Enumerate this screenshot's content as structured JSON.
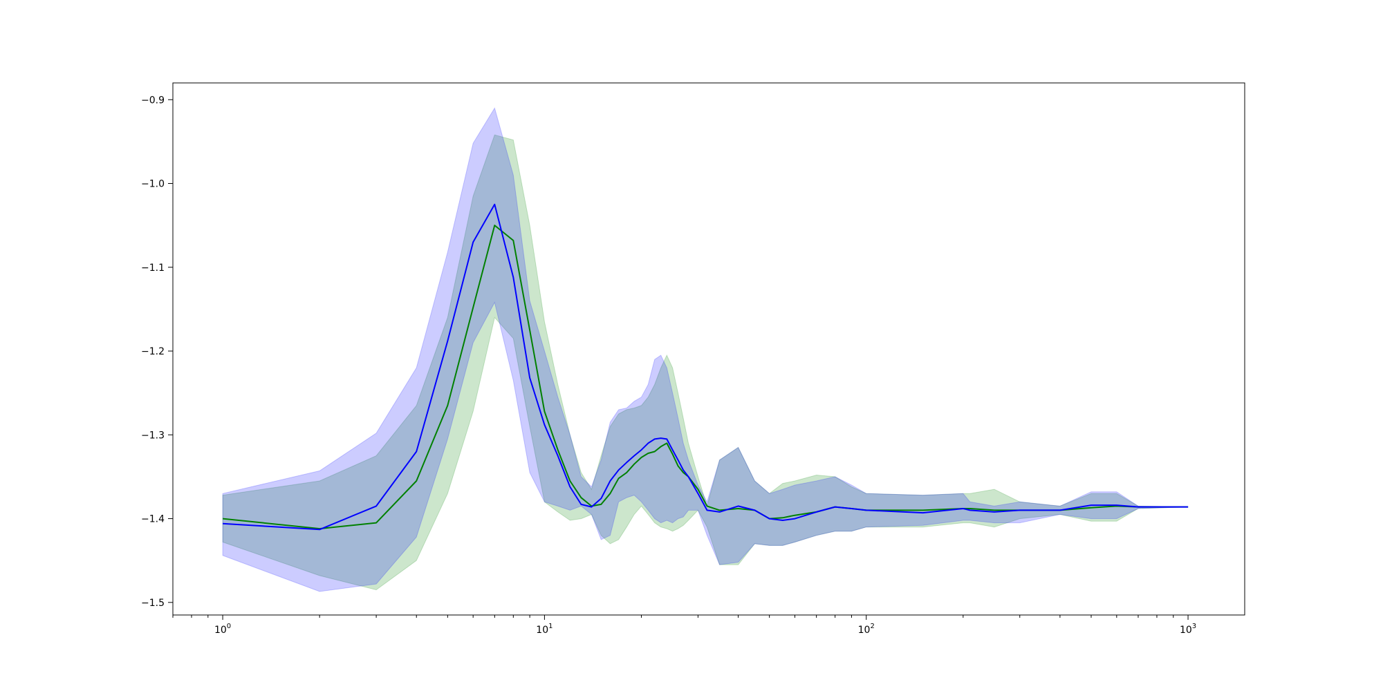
{
  "chart_data": {
    "type": "line",
    "x_scale": "log",
    "xlim": [
      0.7,
      1500
    ],
    "ylim": [
      -1.515,
      -0.88
    ],
    "grid": false,
    "legend": "none",
    "x_ticks": [
      {
        "value": 1,
        "base": "10",
        "exp": "0"
      },
      {
        "value": 10,
        "base": "10",
        "exp": "1"
      },
      {
        "value": 100,
        "base": "10",
        "exp": "2"
      },
      {
        "value": 1000,
        "base": "10",
        "exp": "3"
      }
    ],
    "y_ticks": [
      {
        "value": -0.9,
        "label": "−0.9"
      },
      {
        "value": -1.0,
        "label": "−1.0"
      },
      {
        "value": -1.1,
        "label": "−1.1"
      },
      {
        "value": -1.2,
        "label": "−1.2"
      },
      {
        "value": -1.3,
        "label": "−1.3"
      },
      {
        "value": -1.4,
        "label": "−1.4"
      },
      {
        "value": -1.5,
        "label": "−1.5"
      }
    ],
    "series": [
      {
        "color": "#008000",
        "band_color": "#008000",
        "band_opacity": 0.2,
        "x": [
          1,
          2,
          3,
          4,
          5,
          6,
          7,
          8,
          9,
          10,
          11,
          12,
          13,
          14,
          15,
          16,
          17,
          18,
          19,
          20,
          21,
          22,
          23,
          24,
          25,
          26,
          27,
          28,
          30,
          32,
          35,
          40,
          45,
          50,
          55,
          60,
          70,
          80,
          90,
          100,
          150,
          200,
          210,
          250,
          300,
          400,
          500,
          600,
          700,
          1000
        ],
        "mean": [
          -1.4,
          -1.412,
          -1.405,
          -1.355,
          -1.265,
          -1.148,
          -1.05,
          -1.068,
          -1.175,
          -1.272,
          -1.318,
          -1.355,
          -1.375,
          -1.385,
          -1.383,
          -1.37,
          -1.352,
          -1.345,
          -1.335,
          -1.327,
          -1.322,
          -1.32,
          -1.314,
          -1.31,
          -1.323,
          -1.337,
          -1.345,
          -1.35,
          -1.365,
          -1.385,
          -1.39,
          -1.388,
          -1.39,
          -1.4,
          -1.399,
          -1.396,
          -1.392,
          -1.386,
          -1.388,
          -1.39,
          -1.39,
          -1.388,
          -1.388,
          -1.39,
          -1.39,
          -1.39,
          -1.387,
          -1.385,
          -1.386,
          -1.386
        ],
        "upper": [
          -1.372,
          -1.355,
          -1.325,
          -1.265,
          -1.16,
          -1.015,
          -0.942,
          -0.948,
          -1.05,
          -1.165,
          -1.24,
          -1.3,
          -1.345,
          -1.365,
          -1.325,
          -1.29,
          -1.275,
          -1.27,
          -1.268,
          -1.265,
          -1.255,
          -1.24,
          -1.22,
          -1.205,
          -1.22,
          -1.25,
          -1.28,
          -1.31,
          -1.35,
          -1.385,
          -1.33,
          -1.315,
          -1.355,
          -1.37,
          -1.358,
          -1.355,
          -1.348,
          -1.35,
          -1.362,
          -1.37,
          -1.372,
          -1.37,
          -1.37,
          -1.365,
          -1.38,
          -1.385,
          -1.37,
          -1.37,
          -1.385,
          -1.386
        ],
        "lower": [
          -1.428,
          -1.468,
          -1.485,
          -1.45,
          -1.37,
          -1.272,
          -1.16,
          -1.185,
          -1.29,
          -1.38,
          -1.392,
          -1.402,
          -1.4,
          -1.395,
          -1.42,
          -1.43,
          -1.425,
          -1.41,
          -1.395,
          -1.385,
          -1.395,
          -1.405,
          -1.41,
          -1.412,
          -1.415,
          -1.412,
          -1.408,
          -1.402,
          -1.39,
          -1.41,
          -1.455,
          -1.455,
          -1.43,
          -1.432,
          -1.432,
          -1.428,
          -1.42,
          -1.415,
          -1.415,
          -1.41,
          -1.41,
          -1.405,
          -1.405,
          -1.41,
          -1.4,
          -1.395,
          -1.403,
          -1.403,
          -1.388,
          -1.386
        ]
      },
      {
        "color": "#0000ff",
        "band_color": "#0000ff",
        "band_opacity": 0.2,
        "x": [
          1,
          2,
          3,
          4,
          5,
          6,
          7,
          8,
          9,
          10,
          11,
          12,
          13,
          14,
          15,
          16,
          17,
          18,
          19,
          20,
          21,
          22,
          23,
          24,
          25,
          26,
          27,
          28,
          30,
          32,
          35,
          40,
          45,
          50,
          55,
          60,
          70,
          80,
          90,
          100,
          150,
          200,
          210,
          250,
          300,
          400,
          500,
          600,
          700,
          1000
        ],
        "mean": [
          -1.406,
          -1.413,
          -1.385,
          -1.32,
          -1.188,
          -1.07,
          -1.025,
          -1.112,
          -1.232,
          -1.288,
          -1.325,
          -1.362,
          -1.383,
          -1.386,
          -1.376,
          -1.355,
          -1.342,
          -1.333,
          -1.325,
          -1.318,
          -1.31,
          -1.305,
          -1.304,
          -1.305,
          -1.318,
          -1.33,
          -1.342,
          -1.35,
          -1.37,
          -1.39,
          -1.392,
          -1.385,
          -1.39,
          -1.4,
          -1.402,
          -1.4,
          -1.392,
          -1.386,
          -1.388,
          -1.39,
          -1.393,
          -1.388,
          -1.39,
          -1.392,
          -1.39,
          -1.39,
          -1.384,
          -1.384,
          -1.386,
          -1.386
        ],
        "upper": [
          -1.37,
          -1.343,
          -1.298,
          -1.22,
          -1.082,
          -0.952,
          -0.91,
          -0.99,
          -1.14,
          -1.2,
          -1.255,
          -1.3,
          -1.35,
          -1.362,
          -1.33,
          -1.285,
          -1.27,
          -1.268,
          -1.26,
          -1.255,
          -1.24,
          -1.21,
          -1.205,
          -1.22,
          -1.25,
          -1.28,
          -1.31,
          -1.33,
          -1.36,
          -1.38,
          -1.33,
          -1.315,
          -1.355,
          -1.37,
          -1.365,
          -1.36,
          -1.355,
          -1.35,
          -1.36,
          -1.37,
          -1.372,
          -1.37,
          -1.38,
          -1.385,
          -1.38,
          -1.385,
          -1.368,
          -1.368,
          -1.385,
          -1.386
        ],
        "lower": [
          -1.444,
          -1.487,
          -1.478,
          -1.422,
          -1.305,
          -1.19,
          -1.142,
          -1.235,
          -1.345,
          -1.38,
          -1.385,
          -1.39,
          -1.385,
          -1.395,
          -1.425,
          -1.42,
          -1.38,
          -1.375,
          -1.372,
          -1.38,
          -1.39,
          -1.4,
          -1.405,
          -1.402,
          -1.405,
          -1.4,
          -1.398,
          -1.39,
          -1.39,
          -1.42,
          -1.455,
          -1.452,
          -1.43,
          -1.432,
          -1.432,
          -1.428,
          -1.42,
          -1.415,
          -1.415,
          -1.41,
          -1.408,
          -1.402,
          -1.402,
          -1.405,
          -1.405,
          -1.395,
          -1.4,
          -1.4,
          -1.388,
          -1.386
        ]
      }
    ]
  }
}
